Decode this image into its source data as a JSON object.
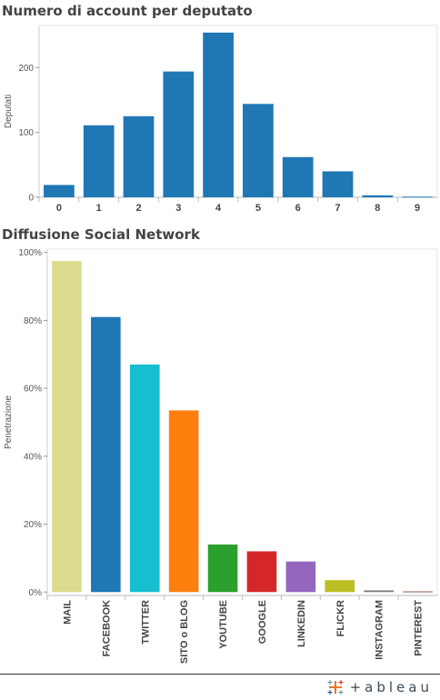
{
  "chart_data": [
    {
      "type": "bar",
      "title": "Numero di account per deputato",
      "ylabel": "Deputati",
      "xlabel": "",
      "categories": [
        "0",
        "1",
        "2",
        "3",
        "4",
        "5",
        "6",
        "7",
        "8",
        "9"
      ],
      "values": [
        19,
        111,
        125,
        194,
        254,
        144,
        62,
        40,
        3,
        1
      ],
      "ylim": [
        0,
        265
      ],
      "yticks": [
        0,
        100,
        200
      ],
      "color": "#1f77b4",
      "grid": false
    },
    {
      "type": "bar",
      "title": "Diffusione Social Network",
      "ylabel": "Penetrazione",
      "xlabel": "",
      "categories": [
        "MAIL",
        "FACEBOOK",
        "TWITTER",
        "SITO o BLOG",
        "YOUTUBE",
        "GOOGLE",
        "LINKEDIN",
        "FLICKR",
        "INSTAGRAM",
        "PINTEREST"
      ],
      "values": [
        97.5,
        81,
        67,
        53.5,
        14,
        12,
        9,
        3.5,
        0.5,
        0.2
      ],
      "colors": [
        "#dbdb8d",
        "#1f77b4",
        "#17becf",
        "#ff7f0e",
        "#2ca02c",
        "#d62728",
        "#9467bd",
        "#bcbd22",
        "#7f7f7f",
        "#8c564b"
      ],
      "ylim": [
        -1,
        101
      ],
      "yticks": [
        0,
        20,
        40,
        60,
        80,
        100
      ],
      "ytick_labels": [
        "0%",
        "20%",
        "40%",
        "60%",
        "80%",
        "100%"
      ],
      "grid": false
    }
  ],
  "footer": {
    "logo_text": "+ableau"
  }
}
